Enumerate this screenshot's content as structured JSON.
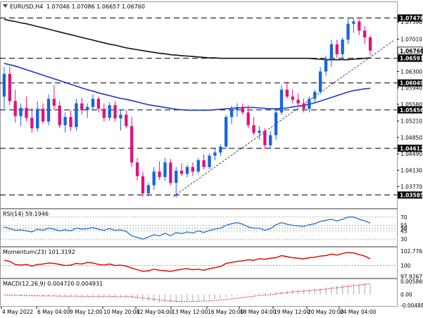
{
  "header": {
    "symbol_icon": "triangle-down-icon",
    "title": "EURUSD,H4",
    "ohlc": "1.07046 1.07086 1.06657 1.06760"
  },
  "colors": {
    "bull": "#1565e0",
    "bear": "#e0117f",
    "ma_fast": "#2233cc",
    "ma_slow": "#111111",
    "rsi": "#1a73c8",
    "momentum": "#dd0000",
    "macd_signal": "#dd2222",
    "macd_hist": "#b8b8b8",
    "level_box": "#000000",
    "level_text": "#ffffff"
  },
  "chart_data": [
    {
      "type": "candlestick",
      "symbol": "EURUSD",
      "timeframe": "H4",
      "ylim": [
        1.0333,
        1.0764
      ],
      "y_ticks": [
        "1.07390",
        "1.07010",
        "1.06300",
        "1.05940",
        "1.05580",
        "1.05210",
        "1.04850",
        "1.04490",
        "1.04130",
        "1.03770"
      ],
      "x_tick_labels": [
        "4 May 2022",
        "6 May 04:00",
        "9 May 12:00",
        "10 May 20:00",
        "12 May 04:00",
        "13 May 12:00",
        "16 May 20:00",
        "18 May 04:00",
        "19 May 12:00",
        "20 May 20:00",
        "24 May 04:00"
      ],
      "current_price": "1.06760",
      "horizontal_levels": [
        "1.07478",
        "1.06591",
        "1.06049",
        "1.05456",
        "1.04612",
        "1.03585"
      ],
      "trendline": {
        "from": {
          "label": "13 May",
          "price": 1.0355
        },
        "to": {
          "label": "24 May 12:00",
          "price": 1.0677
        }
      },
      "ohlc_bars": [
        [
          1.0575,
          1.064,
          1.0548,
          1.0625
        ],
        [
          1.0625,
          1.0641,
          1.0556,
          1.0565
        ],
        [
          1.0565,
          1.059,
          1.0518,
          1.0532
        ],
        [
          1.0532,
          1.056,
          1.051,
          1.055
        ],
        [
          1.055,
          1.0575,
          1.052,
          1.0528
        ],
        [
          1.0528,
          1.055,
          1.0495,
          1.0505
        ],
        [
          1.0505,
          1.0565,
          1.0498,
          1.0548
        ],
        [
          1.0548,
          1.056,
          1.0515,
          1.052
        ],
        [
          1.052,
          1.058,
          1.0512,
          1.057
        ],
        [
          1.057,
          1.06,
          1.0545,
          1.0555
        ],
        [
          1.0555,
          1.0565,
          1.0505,
          1.0512
        ],
        [
          1.0512,
          1.054,
          1.0496,
          1.053
        ],
        [
          1.053,
          1.0545,
          1.05,
          1.0508
        ],
        [
          1.0508,
          1.057,
          1.05,
          1.056
        ],
        [
          1.056,
          1.0572,
          1.0535,
          1.0545
        ],
        [
          1.0545,
          1.056,
          1.0528,
          1.0552
        ],
        [
          1.0552,
          1.058,
          1.0545,
          1.057
        ],
        [
          1.057,
          1.0575,
          1.054,
          1.0548
        ],
        [
          1.0548,
          1.056,
          1.052,
          1.0528
        ],
        [
          1.0528,
          1.0562,
          1.0522,
          1.0556
        ],
        [
          1.0556,
          1.0565,
          1.052,
          1.0527
        ],
        [
          1.0527,
          1.0545,
          1.05,
          1.0535
        ],
        [
          1.0535,
          1.0545,
          1.0505,
          1.051
        ],
        [
          1.051,
          1.053,
          1.042,
          1.043
        ],
        [
          1.043,
          1.044,
          1.039,
          1.04
        ],
        [
          1.04,
          1.041,
          1.0355,
          1.0362
        ],
        [
          1.0362,
          1.0385,
          1.0355,
          1.038
        ],
        [
          1.038,
          1.042,
          1.037,
          1.041
        ],
        [
          1.041,
          1.0432,
          1.0392,
          1.0398
        ],
        [
          1.0398,
          1.044,
          1.039,
          1.043
        ],
        [
          1.043,
          1.0438,
          1.038,
          1.0385
        ],
        [
          1.0385,
          1.042,
          1.0353,
          1.0412
        ],
        [
          1.0412,
          1.0428,
          1.04,
          1.0405
        ],
        [
          1.0405,
          1.0425,
          1.0398,
          1.042
        ],
        [
          1.042,
          1.043,
          1.04,
          1.041
        ],
        [
          1.041,
          1.044,
          1.0405,
          1.0435
        ],
        [
          1.0435,
          1.0448,
          1.0415,
          1.042
        ],
        [
          1.042,
          1.045,
          1.0415,
          1.0445
        ],
        [
          1.0445,
          1.046,
          1.0435,
          1.0452
        ],
        [
          1.0452,
          1.047,
          1.0445,
          1.0465
        ],
        [
          1.0465,
          1.0535,
          1.046,
          1.053
        ],
        [
          1.053,
          1.0555,
          1.0515,
          1.0545
        ],
        [
          1.0545,
          1.056,
          1.053,
          1.0552
        ],
        [
          1.0552,
          1.056,
          1.0535,
          1.054
        ],
        [
          1.054,
          1.0555,
          1.0505,
          1.0512
        ],
        [
          1.0512,
          1.053,
          1.049,
          1.0495
        ],
        [
          1.0495,
          1.051,
          1.048,
          1.05
        ],
        [
          1.05,
          1.0505,
          1.046,
          1.0468
        ],
        [
          1.0468,
          1.05,
          1.046,
          1.049
        ],
        [
          1.049,
          1.0545,
          1.048,
          1.054
        ],
        [
          1.054,
          1.06,
          1.0535,
          1.059
        ],
        [
          1.059,
          1.0608,
          1.057,
          1.0575
        ],
        [
          1.0575,
          1.059,
          1.056,
          1.0568
        ],
        [
          1.0568,
          1.0582,
          1.0555,
          1.056
        ],
        [
          1.056,
          1.057,
          1.054,
          1.0548
        ],
        [
          1.0548,
          1.0575,
          1.054,
          1.057
        ],
        [
          1.057,
          1.059,
          1.0562,
          1.0585
        ],
        [
          1.0585,
          1.064,
          1.058,
          1.063
        ],
        [
          1.063,
          1.0665,
          1.062,
          1.0658
        ],
        [
          1.0658,
          1.07,
          1.064,
          1.069
        ],
        [
          1.069,
          1.07,
          1.066,
          1.0668
        ],
        [
          1.0668,
          1.0705,
          1.0655,
          1.07
        ],
        [
          1.07,
          1.0748,
          1.069,
          1.0735
        ],
        [
          1.0735,
          1.0748,
          1.0715,
          1.074
        ],
        [
          1.074,
          1.0745,
          1.071,
          1.072
        ],
        [
          1.072,
          1.073,
          1.069,
          1.0705
        ],
        [
          1.0705,
          1.0709,
          1.0666,
          1.0676
        ]
      ],
      "ma_fast_values": [
        1.0648,
        1.0645,
        1.0642,
        1.0638,
        1.0634,
        1.063,
        1.0626,
        1.0622,
        1.0618,
        1.0614,
        1.061,
        1.0606,
        1.0602,
        1.0598,
        1.0594,
        1.059,
        1.0587,
        1.0583,
        1.058,
        1.0577,
        1.0574,
        1.0571,
        1.0569,
        1.0566,
        1.0563,
        1.056,
        1.0557,
        1.0555,
        1.0553,
        1.0551,
        1.0549,
        1.0547,
        1.0546,
        1.0545,
        1.0545,
        1.0545,
        1.0545,
        1.0545,
        1.0546,
        1.0547,
        1.0548,
        1.0549,
        1.055,
        1.0551,
        1.0551,
        1.0551,
        1.055,
        1.0549,
        1.0548,
        1.0548,
        1.0549,
        1.055,
        1.0552,
        1.0554,
        1.0556,
        1.0558,
        1.0561,
        1.0565,
        1.0569,
        1.0573,
        1.0577,
        1.0581,
        1.0585,
        1.0588,
        1.059,
        1.0592,
        1.0593
      ],
      "ma_slow_values": [
        1.0745,
        1.0742,
        1.074,
        1.0737,
        1.0735,
        1.0732,
        1.0729,
        1.0726,
        1.0723,
        1.072,
        1.0717,
        1.0714,
        1.0711,
        1.0708,
        1.0705,
        1.0702,
        1.0699,
        1.0696,
        1.0693,
        1.069,
        1.0688,
        1.0685,
        1.0682,
        1.068,
        1.0678,
        1.0676,
        1.0674,
        1.0672,
        1.067,
        1.0669,
        1.0667,
        1.0666,
        1.0665,
        1.0664,
        1.0663,
        1.0662,
        1.0661,
        1.066,
        1.066,
        1.0659,
        1.0659,
        1.0659,
        1.0659,
        1.0659,
        1.0659,
        1.0659,
        1.0659,
        1.0659,
        1.0659,
        1.0659,
        1.0659,
        1.0659,
        1.0659,
        1.0659,
        1.0659,
        1.0659,
        1.0658,
        1.0657,
        1.0656,
        1.0656,
        1.0656,
        1.0656,
        1.0656,
        1.0657,
        1.0658,
        1.0659,
        1.066
      ]
    },
    {
      "type": "line",
      "name": "RSI(14) 59.1946",
      "levels": [
        "70",
        "55",
        "50",
        "45",
        "30"
      ],
      "ylim": [
        20,
        80
      ],
      "values": [
        52,
        49,
        46,
        47,
        45,
        43,
        48,
        46,
        50,
        48,
        45,
        47,
        45,
        50,
        48,
        49,
        51,
        48,
        46,
        49,
        46,
        47,
        44,
        36,
        33,
        30,
        34,
        38,
        36,
        41,
        36,
        42,
        40,
        43,
        41,
        45,
        42,
        46,
        48,
        50,
        55,
        58,
        60,
        57,
        52,
        50,
        50,
        46,
        49,
        56,
        60,
        57,
        55,
        54,
        53,
        56,
        58,
        62,
        64,
        66,
        63,
        66,
        70,
        70,
        66,
        63,
        59
      ]
    },
    {
      "type": "line",
      "name": "Momentum(23) 101.3192",
      "ylim": [
        97.9267,
        102.7763
      ],
      "y_ticks": [
        "102.7763",
        "100",
        "97.9267"
      ],
      "values": [
        101.0,
        100.8,
        100.2,
        100.1,
        100.2,
        99.9,
        100.2,
        100.3,
        100.5,
        100.4,
        100.2,
        100.0,
        100.1,
        100.4,
        100.3,
        100.6,
        100.5,
        100.2,
        100.1,
        100.3,
        100.0,
        100.1,
        99.9,
        99.5,
        99.2,
        98.9,
        99.0,
        99.3,
        99.1,
        99.0,
        98.9,
        99.1,
        99.3,
        99.4,
        99.2,
        99.3,
        99.1,
        99.4,
        99.6,
        99.8,
        100.4,
        100.6,
        100.8,
        100.9,
        101.1,
        101.0,
        101.3,
        101.2,
        101.4,
        101.5,
        101.9,
        101.7,
        101.5,
        101.4,
        101.3,
        101.5,
        101.6,
        101.8,
        101.9,
        102.2,
        102.0,
        102.3,
        102.5,
        102.4,
        102.1,
        101.8,
        101.3
      ]
    },
    {
      "type": "bar",
      "name": "MACD(12,26,9) 0.004720 0.004931",
      "ylim": [
        -0.004884,
        0.005869
      ],
      "y_ticks": [
        "0.005869",
        "0.00",
        "-0.004884"
      ],
      "histogram": [
        -0.0003,
        -0.0004,
        -0.0005,
        -0.0006,
        -0.0007,
        -0.0008,
        -0.0008,
        -0.0008,
        -0.0008,
        -0.0008,
        -0.0009,
        -0.0009,
        -0.0009,
        -0.0009,
        -0.0009,
        -0.0009,
        -0.0009,
        -0.0009,
        -0.001,
        -0.001,
        -0.0011,
        -0.0011,
        -0.0012,
        -0.0016,
        -0.0021,
        -0.0027,
        -0.0031,
        -0.0034,
        -0.0036,
        -0.0037,
        -0.0038,
        -0.0037,
        -0.0036,
        -0.0034,
        -0.0032,
        -0.0029,
        -0.0027,
        -0.0024,
        -0.0021,
        -0.0018,
        -0.0013,
        -0.0009,
        -0.0005,
        -0.0002,
        0.0001,
        0.0003,
        0.0005,
        0.0006,
        0.0008,
        0.0011,
        0.0015,
        0.0018,
        0.002,
        0.0021,
        0.0022,
        0.0024,
        0.0026,
        0.0029,
        0.0033,
        0.0036,
        0.0039,
        0.0042,
        0.0045,
        0.0047,
        0.0048,
        0.0048,
        0.0047
      ],
      "signal": [
        -0.0002,
        -0.0003,
        -0.0004,
        -0.0004,
        -0.0005,
        -0.0006,
        -0.0006,
        -0.0007,
        -0.0007,
        -0.0007,
        -0.0008,
        -0.0008,
        -0.0008,
        -0.0008,
        -0.0009,
        -0.0009,
        -0.0009,
        -0.0009,
        -0.0009,
        -0.0009,
        -0.001,
        -0.001,
        -0.001,
        -0.0011,
        -0.0013,
        -0.0016,
        -0.0019,
        -0.0022,
        -0.0025,
        -0.0027,
        -0.0029,
        -0.0031,
        -0.0032,
        -0.0032,
        -0.0032,
        -0.0031,
        -0.003,
        -0.0029,
        -0.0027,
        -0.0025,
        -0.0023,
        -0.002,
        -0.0017,
        -0.0014,
        -0.0011,
        -0.0008,
        -0.0005,
        -0.0003,
        -0.0001,
        0.0002,
        0.0005,
        0.0008,
        0.0011,
        0.0013,
        0.0015,
        0.0017,
        0.0019,
        0.0021,
        0.0024,
        0.0027,
        0.003,
        0.0033,
        0.0036,
        0.0039,
        0.0042,
        0.0045,
        0.0049
      ]
    }
  ]
}
